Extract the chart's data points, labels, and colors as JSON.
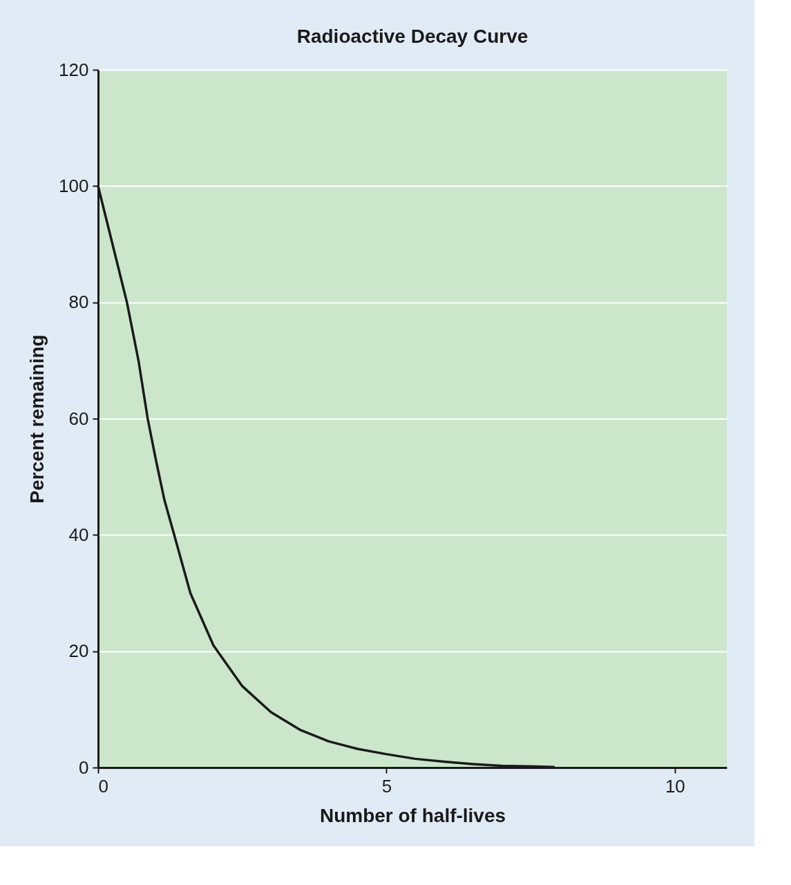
{
  "chart_data": {
    "type": "line",
    "title": "Radioactive Decay Curve",
    "xlabel": "Number of half-lives",
    "ylabel": "Percent remaining",
    "x": [
      0,
      0.25,
      0.5,
      0.7,
      0.86,
      1.0,
      1.15,
      1.32,
      1.6,
      2.0,
      2.5,
      3.0,
      3.5,
      4.0,
      4.5,
      5.0,
      5.5,
      6.0,
      6.5,
      7.0,
      7.5,
      7.9
    ],
    "series": [
      {
        "color": "#1a1a1a",
        "values": [
          100,
          90,
          80,
          70,
          60,
          53,
          46,
          40,
          30,
          21,
          14,
          9.5,
          6.5,
          4.5,
          3.2,
          2.3,
          1.5,
          1.0,
          0.6,
          0.3,
          0.2,
          0.1
        ]
      }
    ],
    "xlim": [
      0,
      10.9
    ],
    "xticks": [
      0,
      5,
      10
    ],
    "ylim": [
      0,
      120
    ],
    "yticks": [
      0,
      20,
      40,
      60,
      80,
      100,
      120
    ],
    "grid": "y",
    "marker": "none",
    "line_style": "solid"
  }
}
